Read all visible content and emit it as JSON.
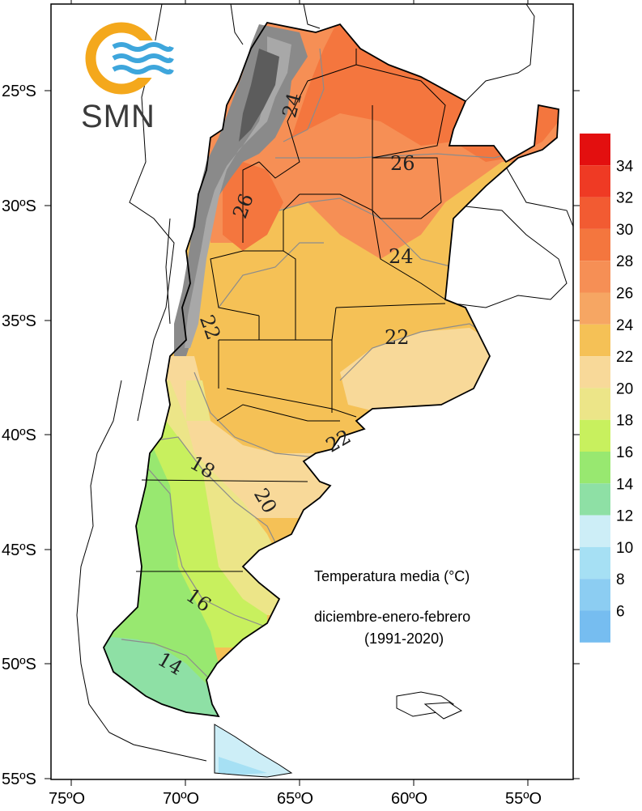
{
  "logo": {
    "text": "SMN",
    "ring_color": "#f4a81c",
    "wave_color": "#3ea6dc"
  },
  "title": {
    "line1": "Temperatura media (°C)",
    "line2": "diciembre-enero-febrero",
    "line3": "(1991-2020)"
  },
  "axes": {
    "lat_labels": [
      "25ºS",
      "30ºS",
      "35ºS",
      "40ºS",
      "45ºS",
      "50ºS",
      "55ºS"
    ],
    "lon_labels": [
      "75ºO",
      "70ºO",
      "65ºO",
      "60ºO",
      "55ºO"
    ]
  },
  "colorbar": {
    "labels": [
      "34",
      "32",
      "30",
      "28",
      "26",
      "24",
      "22",
      "20",
      "18",
      "16",
      "14",
      "12",
      "10",
      "8",
      "6"
    ],
    "colors": [
      "#e30f0f",
      "#ef3a24",
      "#f25b32",
      "#f4763e",
      "#f68f55",
      "#f6a663",
      "#f5c156",
      "#f8d999",
      "#ece588",
      "#c8f05e",
      "#98e870",
      "#8ee0a5",
      "#cdeef7",
      "#a6e0f4",
      "#8ccdf2",
      "#76bdf0"
    ]
  },
  "isotherm_labels": [
    {
      "value": "24"
    },
    {
      "value": "26"
    },
    {
      "value": "26"
    },
    {
      "value": "24"
    },
    {
      "value": "22"
    },
    {
      "value": "22"
    },
    {
      "value": "22"
    },
    {
      "value": "18"
    },
    {
      "value": "20"
    },
    {
      "value": "16"
    },
    {
      "value": "14"
    }
  ]
}
